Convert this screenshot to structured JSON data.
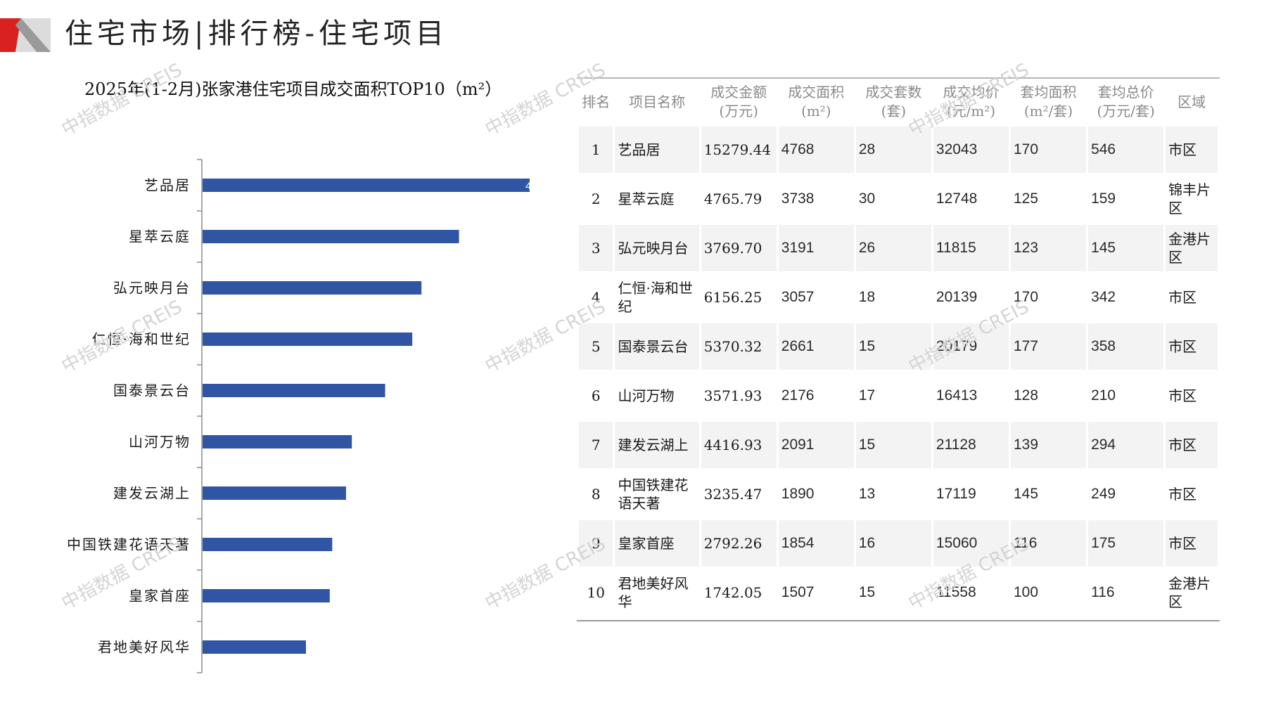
{
  "page_title": "住宅市场|排行榜-住宅项目",
  "chart_title": "2025年(1-2月)张家港住宅项目成交面积TOP10（m²）",
  "watermark_text": "中指数据 CREIS",
  "colors": {
    "bar": "#2f55a4",
    "logo_red": "#d9211f",
    "logo_gray": "#9a9a9a"
  },
  "chart_data": {
    "type": "bar",
    "orientation": "horizontal",
    "title": "2025年(1-2月)张家港住宅项目成交面积TOP10（m²）",
    "categories": [
      "艺品居",
      "星萃云庭",
      "弘元映月台",
      "仁恒·海和世纪",
      "国泰景云台",
      "山河万物",
      "建发云湖上",
      "中国铁建花语天著",
      "皇家首座",
      "君地美好风华"
    ],
    "values": [
      4768,
      3738,
      3191,
      3057,
      2661,
      2176,
      2091,
      1890,
      1854,
      1507
    ],
    "data_label_visible": "4",
    "xlim": [
      0,
      4768
    ],
    "xlabel": "",
    "ylabel": ""
  },
  "table": {
    "headers": [
      [
        "排名"
      ],
      [
        "项目名称"
      ],
      [
        "成交金额",
        "(万元)"
      ],
      [
        "成交面积",
        "(m²)"
      ],
      [
        "成交套数",
        "(套)"
      ],
      [
        "成交均价",
        "(元/m²)"
      ],
      [
        "套均面积",
        "(m²/套)"
      ],
      [
        "套均总价",
        "(万元/套)"
      ],
      [
        "区域"
      ]
    ],
    "rows": [
      [
        "1",
        "艺品居",
        "15279.44",
        "4768",
        "28",
        "32043",
        "170",
        "546",
        "市区"
      ],
      [
        "2",
        "星萃云庭",
        "4765.79",
        "3738",
        "30",
        "12748",
        "125",
        "159",
        "锦丰片区"
      ],
      [
        "3",
        "弘元映月台",
        "3769.70",
        "3191",
        "26",
        "11815",
        "123",
        "145",
        "金港片区"
      ],
      [
        "4",
        "仁恒·海和世纪",
        "6156.25",
        "3057",
        "18",
        "20139",
        "170",
        "342",
        "市区"
      ],
      [
        "5",
        "国泰景云台",
        "5370.32",
        "2661",
        "15",
        "20179",
        "177",
        "358",
        "市区"
      ],
      [
        "6",
        "山河万物",
        "3571.93",
        "2176",
        "17",
        "16413",
        "128",
        "210",
        "市区"
      ],
      [
        "7",
        "建发云湖上",
        "4416.93",
        "2091",
        "15",
        "21128",
        "139",
        "294",
        "市区"
      ],
      [
        "8",
        "中国铁建花语天著",
        "3235.47",
        "1890",
        "13",
        "17119",
        "145",
        "249",
        "市区"
      ],
      [
        "9",
        "皇家首座",
        "2792.26",
        "1854",
        "16",
        "15060",
        "116",
        "175",
        "市区"
      ],
      [
        "10",
        "君地美好风华",
        "1742.05",
        "1507",
        "15",
        "11558",
        "100",
        "116",
        "金港片区"
      ]
    ]
  }
}
